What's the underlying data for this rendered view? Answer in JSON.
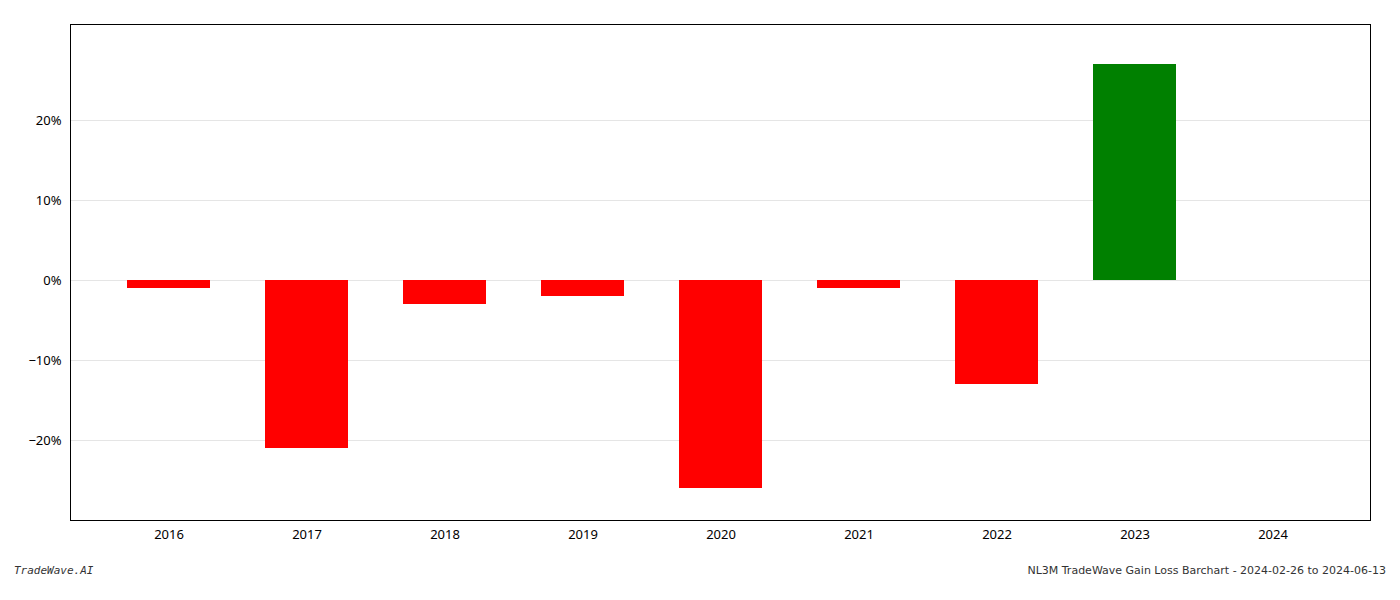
{
  "chart_data": {
    "type": "bar",
    "categories": [
      "2016",
      "2017",
      "2018",
      "2019",
      "2020",
      "2021",
      "2022",
      "2023",
      "2024"
    ],
    "values": [
      -1.0,
      -21.0,
      -3.0,
      -2.0,
      -26.0,
      -1.0,
      -13.0,
      27.0,
      0.0
    ],
    "colors": [
      "#ff0000",
      "#ff0000",
      "#ff0000",
      "#ff0000",
      "#ff0000",
      "#ff0000",
      "#ff0000",
      "#008000",
      "#ffffff"
    ],
    "ylim": [
      -30,
      32
    ],
    "yticks": [
      {
        "value": -20,
        "label": "−20%"
      },
      {
        "value": -10,
        "label": "−10%"
      },
      {
        "value": 0,
        "label": "0%"
      },
      {
        "value": 10,
        "label": "10%"
      },
      {
        "value": 20,
        "label": "20%"
      }
    ],
    "grid": true,
    "annotations": [
      "TradeWave.AI",
      "NL3M TradeWave Gain Loss Barchart - 2024-02-26 to 2024-06-13"
    ]
  }
}
